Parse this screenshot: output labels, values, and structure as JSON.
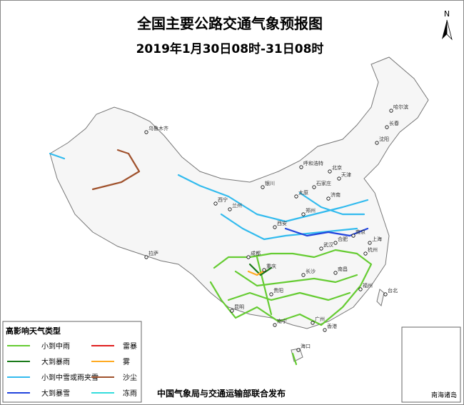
{
  "header": {
    "title": "全国主要公路交通气象预报图",
    "subtitle": "2019年1月30日08时-31日08时",
    "north": "N"
  },
  "legend": {
    "title": "高影响天气类型",
    "items": [
      {
        "label": "小到中雨",
        "color": "#66cc33"
      },
      {
        "label": "大到暴雨",
        "color": "#1a7a1a"
      },
      {
        "label": "小到中雪或雨夹雪",
        "color": "#33bbee"
      },
      {
        "label": "大到暴雪",
        "color": "#2244dd"
      },
      {
        "label": "雷暴",
        "color": "#e02020"
      },
      {
        "label": "雾",
        "color": "#ffaa22"
      },
      {
        "label": "沙尘",
        "color": "#a0522d"
      },
      {
        "label": "冻雨",
        "color": "#33dddd"
      }
    ]
  },
  "cities": [
    "乌鲁木齐",
    "哈尔滨",
    "长春",
    "沈阳",
    "呼和浩特",
    "北京",
    "天津",
    "石家庄",
    "太原",
    "银川",
    "兰州",
    "西宁",
    "济南",
    "郑州",
    "西安",
    "南京",
    "合肥",
    "上海",
    "杭州",
    "武汉",
    "成都",
    "重庆",
    "长沙",
    "南昌",
    "福州",
    "台北",
    "贵阳",
    "昆明",
    "南宁",
    "广州",
    "香港",
    "海口",
    "拉萨"
  ],
  "inset": {
    "label": "南海诸岛"
  },
  "footer": "中国气象局与交通运输部联合发布"
}
